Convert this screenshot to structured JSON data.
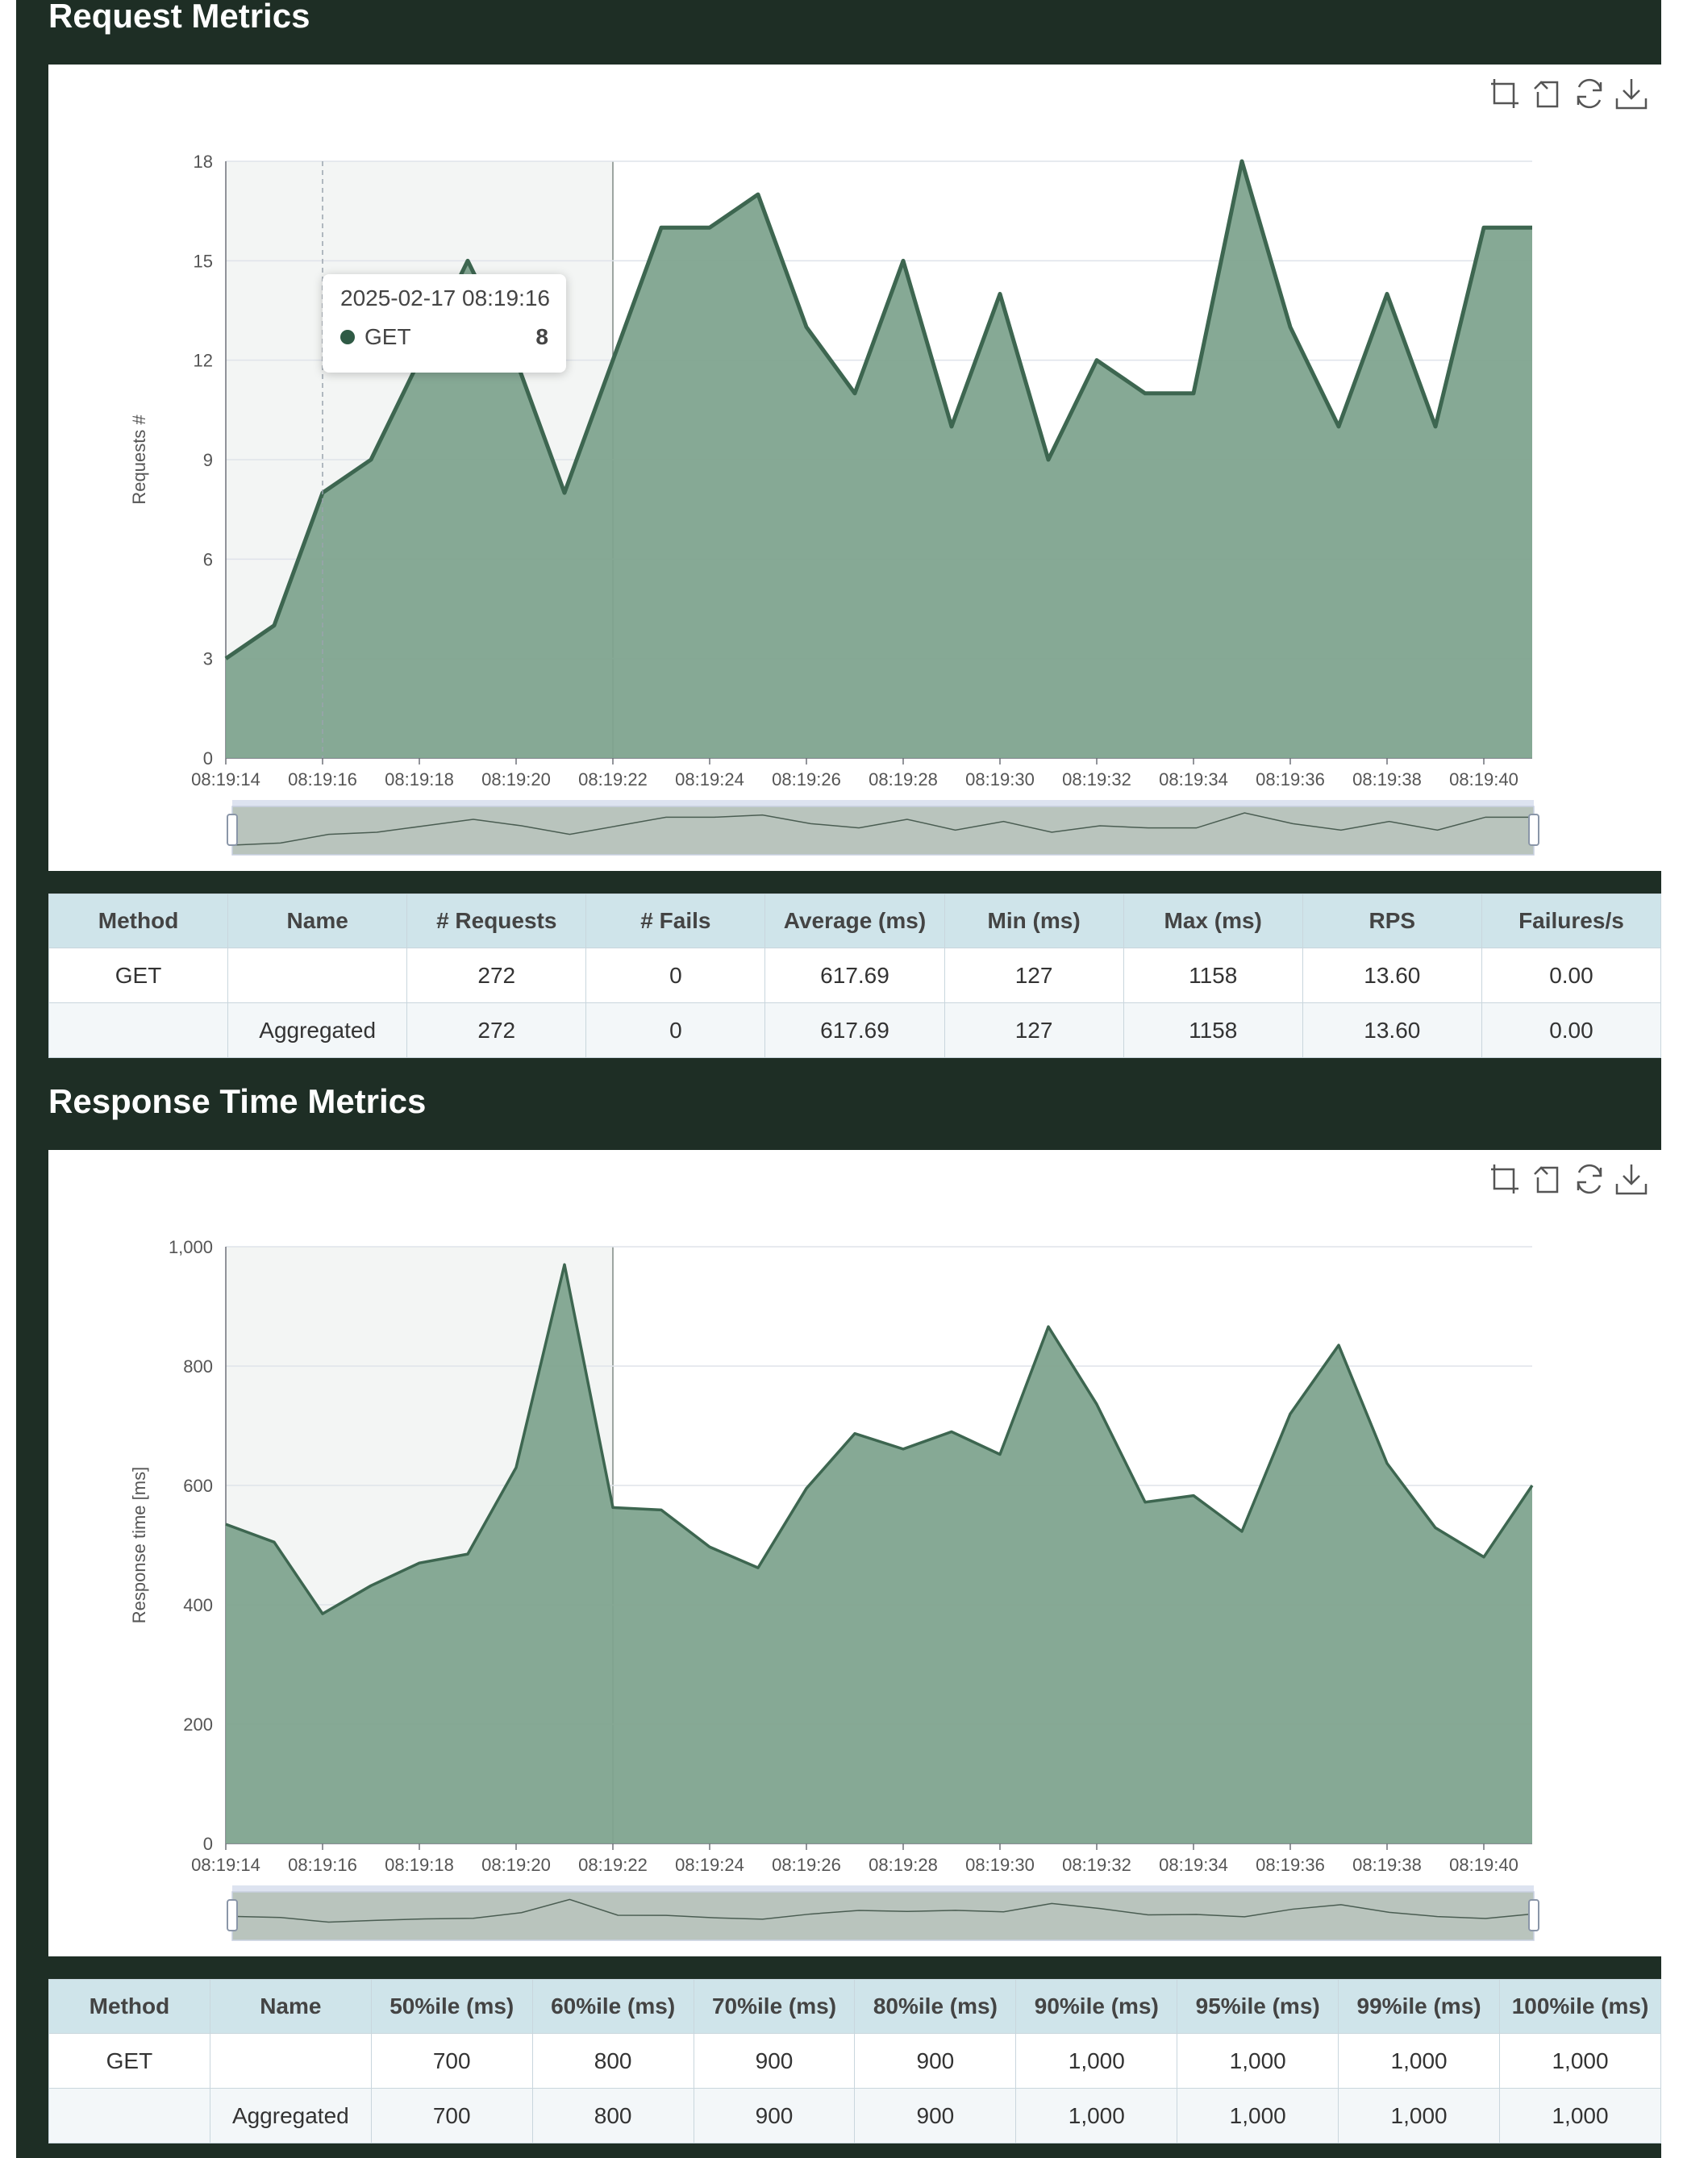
{
  "theme": {
    "panel": "#1e2e25",
    "series_line": "#3d6650",
    "series_fill": "#7fa48f",
    "header_bg": "#cfe4ea"
  },
  "request_section": {
    "title": "Request Metrics"
  },
  "response_section": {
    "title": "Response Time Metrics"
  },
  "toolbox": {
    "icons": [
      "zoom-select-icon",
      "zoom-back-icon",
      "restore-icon",
      "download-icon"
    ]
  },
  "tooltip": {
    "time": "2025-02-17 08:19:16",
    "series": "GET",
    "value": "8"
  },
  "chart_data": [
    {
      "type": "area",
      "ylabel": "Requests #",
      "xlabel": "",
      "ylim": [
        0,
        18
      ],
      "yticks": [
        0,
        3,
        6,
        9,
        12,
        15,
        18
      ],
      "y_tick_labels": [
        "0",
        "3",
        "6",
        "9",
        "12",
        "15",
        "18"
      ],
      "x_tick_labels": [
        "08:19:14",
        "08:19:16",
        "08:19:18",
        "08:19:20",
        "08:19:22",
        "08:19:24",
        "08:19:26",
        "08:19:28",
        "08:19:30",
        "08:19:32",
        "08:19:34",
        "08:19:36",
        "08:19:38",
        "08:19:40"
      ],
      "x": [
        "08:19:14",
        "08:19:15",
        "08:19:16",
        "08:19:17",
        "08:19:18",
        "08:19:19",
        "08:19:20",
        "08:19:21",
        "08:19:22",
        "08:19:23",
        "08:19:24",
        "08:19:25",
        "08:19:26",
        "08:19:27",
        "08:19:28",
        "08:19:29",
        "08:19:30",
        "08:19:31",
        "08:19:32",
        "08:19:33",
        "08:19:34",
        "08:19:35",
        "08:19:36",
        "08:19:37",
        "08:19:38",
        "08:19:39",
        "08:19:40",
        "08:19:41"
      ],
      "series": [
        {
          "values": [
            3,
            4,
            8,
            9,
            12,
            15,
            12,
            8,
            12,
            16,
            16,
            17,
            13,
            11,
            15,
            10,
            14,
            9,
            12,
            11,
            11,
            18,
            13,
            10,
            14,
            10,
            16,
            16
          ]
        }
      ],
      "hover_x": "08:19:16",
      "shaded_range": [
        "08:19:14",
        "08:19:22"
      ],
      "grid": true,
      "zoom_slider": true
    },
    {
      "type": "area",
      "ylabel": "Response time [ms]",
      "xlabel": "",
      "ylim": [
        0,
        1000
      ],
      "yticks": [
        0,
        200,
        400,
        600,
        800,
        1000
      ],
      "y_tick_labels": [
        "0",
        "200",
        "400",
        "600",
        "800",
        "1,000"
      ],
      "x_tick_labels": [
        "08:19:14",
        "08:19:16",
        "08:19:18",
        "08:19:20",
        "08:19:22",
        "08:19:24",
        "08:19:26",
        "08:19:28",
        "08:19:30",
        "08:19:32",
        "08:19:34",
        "08:19:36",
        "08:19:38",
        "08:19:40"
      ],
      "x": [
        "08:19:14",
        "08:19:15",
        "08:19:16",
        "08:19:17",
        "08:19:18",
        "08:19:19",
        "08:19:20",
        "08:19:21",
        "08:19:22",
        "08:19:23",
        "08:19:24",
        "08:19:25",
        "08:19:26",
        "08:19:27",
        "08:19:28",
        "08:19:29",
        "08:19:30",
        "08:19:31",
        "08:19:32",
        "08:19:33",
        "08:19:34",
        "08:19:35",
        "08:19:36",
        "08:19:37",
        "08:19:38",
        "08:19:39",
        "08:19:40",
        "08:19:41"
      ],
      "series": [
        {
          "values": [
            535,
            505,
            385,
            432,
            470,
            485,
            630,
            970,
            563,
            559,
            497,
            462,
            595,
            687,
            661,
            690,
            652,
            866,
            736,
            572,
            583,
            523,
            720,
            835,
            637,
            529,
            480,
            600
          ]
        }
      ],
      "shaded_range": [
        "08:19:14",
        "08:19:22"
      ],
      "grid": true,
      "zoom_slider": true
    }
  ],
  "request_table": {
    "headers": [
      "Method",
      "Name",
      "# Requests",
      "# Fails",
      "Average (ms)",
      "Min (ms)",
      "Max (ms)",
      "RPS",
      "Failures/s"
    ],
    "rows": [
      [
        "GET",
        "",
        "272",
        "0",
        "617.69",
        "127",
        "1158",
        "13.60",
        "0.00"
      ],
      [
        "",
        "Aggregated",
        "272",
        "0",
        "617.69",
        "127",
        "1158",
        "13.60",
        "0.00"
      ]
    ]
  },
  "response_table": {
    "headers": [
      "Method",
      "Name",
      "50%ile (ms)",
      "60%ile (ms)",
      "70%ile (ms)",
      "80%ile (ms)",
      "90%ile (ms)",
      "95%ile (ms)",
      "99%ile (ms)",
      "100%ile (ms)"
    ],
    "rows": [
      [
        "GET",
        "",
        "700",
        "800",
        "900",
        "900",
        "1,000",
        "1,000",
        "1,000",
        "1,000"
      ],
      [
        "",
        "Aggregated",
        "700",
        "800",
        "900",
        "900",
        "1,000",
        "1,000",
        "1,000",
        "1,000"
      ]
    ]
  }
}
